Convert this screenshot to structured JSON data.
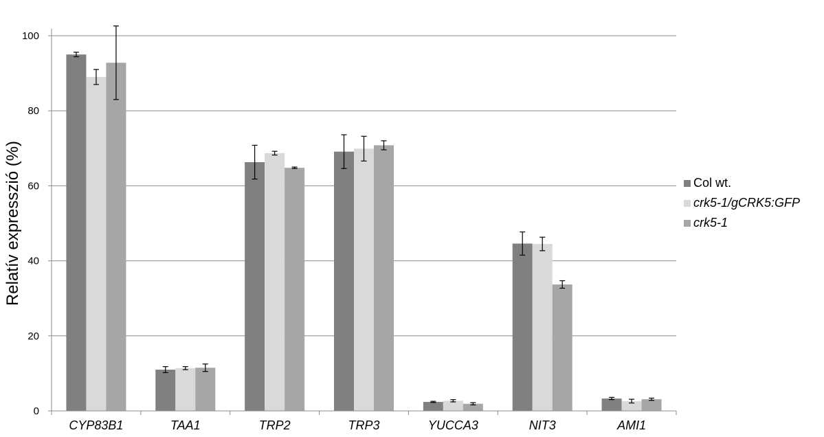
{
  "chart_data": {
    "type": "bar",
    "title": "",
    "xlabel": "",
    "ylabel": "Relatív expresszió (%)",
    "ylim": [
      0,
      100
    ],
    "yticks": [
      0,
      20,
      40,
      60,
      80,
      100
    ],
    "grid": true,
    "legend_position": "right",
    "categories": [
      "CYP83B1",
      "TAA1",
      "TRP2",
      "TRP3",
      "YUCCA3",
      "NIT3",
      "AMI1"
    ],
    "series": [
      {
        "name": "Col wt.",
        "italic": false,
        "color": "#808080",
        "values": [
          95.0,
          11.0,
          66.3,
          69.1,
          2.4,
          44.6,
          3.3
        ],
        "errors": [
          0.6,
          0.8,
          4.5,
          4.5,
          0.15,
          3.1,
          0.3
        ]
      },
      {
        "name": "crk5-1/gCRK5:GFP",
        "italic": true,
        "color": "#D9D9D9",
        "values": [
          89.0,
          11.4,
          68.7,
          69.9,
          2.7,
          44.5,
          2.6
        ],
        "errors": [
          2.0,
          0.4,
          0.5,
          3.3,
          0.3,
          1.8,
          0.5
        ]
      },
      {
        "name": "crk5-1",
        "italic": true,
        "color": "#A6A6A6",
        "values": [
          92.8,
          11.5,
          64.8,
          70.8,
          1.9,
          33.7,
          3.1
        ],
        "errors": [
          9.8,
          1.0,
          0.2,
          1.2,
          0.3,
          1.0,
          0.3
        ]
      }
    ]
  }
}
